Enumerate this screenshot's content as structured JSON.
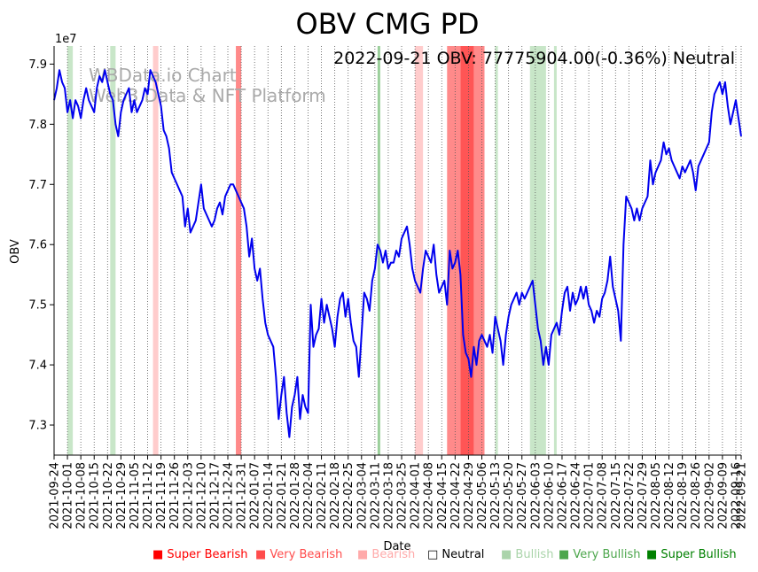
{
  "chart_data": {
    "type": "line",
    "title": "OBV CMG PD",
    "annotation": "2022-09-21 OBV: 77775904.00(-0.36%) Neutral",
    "watermark_line1": "WBData.io Chart",
    "watermark_line2": "Web3 Data & NFT Platform",
    "xlabel": "Date",
    "ylabel": "OBV",
    "y_scale_label": "1e7",
    "y_ticks": [
      "7.3",
      "7.4",
      "7.5",
      "7.6",
      "7.7",
      "7.8",
      "7.9"
    ],
    "y_tick_values": [
      7.3,
      7.4,
      7.5,
      7.6,
      7.7,
      7.8,
      7.9
    ],
    "ylim": [
      7.25,
      7.93
    ],
    "x_start": "2021-09-24",
    "x_end": "2022-09-21",
    "x_ticks": [
      "2021-09-24",
      "2021-10-01",
      "2021-10-08",
      "2021-10-15",
      "2021-10-22",
      "2021-10-29",
      "2021-11-05",
      "2021-11-12",
      "2021-11-19",
      "2021-11-26",
      "2021-12-03",
      "2021-12-10",
      "2021-12-17",
      "2021-12-24",
      "2021-12-31",
      "2022-01-07",
      "2022-01-14",
      "2022-01-21",
      "2022-01-28",
      "2022-02-04",
      "2022-02-11",
      "2022-02-18",
      "2022-02-25",
      "2022-03-04",
      "2022-03-11",
      "2022-03-18",
      "2022-03-25",
      "2022-04-01",
      "2022-04-08",
      "2022-04-15",
      "2022-04-22",
      "2022-04-29",
      "2022-05-06",
      "2022-05-13",
      "2022-05-20",
      "2022-05-27",
      "2022-06-03",
      "2022-06-10",
      "2022-06-17",
      "2022-06-24",
      "2022-07-01",
      "2022-07-08",
      "2022-07-15",
      "2022-07-22",
      "2022-07-29",
      "2022-08-05",
      "2022-08-12",
      "2022-08-19",
      "2022-08-26",
      "2022-09-02",
      "2022-09-09",
      "2022-09-16",
      "2022-09-21"
    ],
    "series": [
      {
        "name": "OBV",
        "color": "#0000ee",
        "points": [
          [
            0,
            7.84
          ],
          [
            1,
            7.86
          ],
          [
            2,
            7.89
          ],
          [
            3,
            7.87
          ],
          [
            4,
            7.86
          ],
          [
            5,
            7.82
          ],
          [
            6,
            7.84
          ],
          [
            7,
            7.81
          ],
          [
            8,
            7.84
          ],
          [
            9,
            7.83
          ],
          [
            10,
            7.81
          ],
          [
            11,
            7.84
          ],
          [
            12,
            7.86
          ],
          [
            13,
            7.84
          ],
          [
            14,
            7.83
          ],
          [
            15,
            7.82
          ],
          [
            16,
            7.86
          ],
          [
            17,
            7.88
          ],
          [
            18,
            7.87
          ],
          [
            19,
            7.89
          ],
          [
            20,
            7.87
          ],
          [
            21,
            7.85
          ],
          [
            22,
            7.84
          ],
          [
            23,
            7.8
          ],
          [
            24,
            7.78
          ],
          [
            25,
            7.82
          ],
          [
            26,
            7.84
          ],
          [
            27,
            7.85
          ],
          [
            28,
            7.86
          ],
          [
            29,
            7.82
          ],
          [
            30,
            7.84
          ],
          [
            31,
            7.82
          ],
          [
            32,
            7.83
          ],
          [
            33,
            7.84
          ],
          [
            34,
            7.86
          ],
          [
            35,
            7.85
          ],
          [
            36,
            7.89
          ],
          [
            37,
            7.88
          ],
          [
            38,
            7.87
          ],
          [
            39,
            7.85
          ],
          [
            40,
            7.83
          ],
          [
            41,
            7.79
          ],
          [
            42,
            7.78
          ],
          [
            43,
            7.76
          ],
          [
            44,
            7.72
          ],
          [
            45,
            7.71
          ],
          [
            46,
            7.7
          ],
          [
            47,
            7.69
          ],
          [
            48,
            7.68
          ],
          [
            49,
            7.63
          ],
          [
            50,
            7.66
          ],
          [
            51,
            7.62
          ],
          [
            52,
            7.63
          ],
          [
            53,
            7.64
          ],
          [
            54,
            7.67
          ],
          [
            55,
            7.7
          ],
          [
            56,
            7.66
          ],
          [
            57,
            7.65
          ],
          [
            58,
            7.64
          ],
          [
            59,
            7.63
          ],
          [
            60,
            7.64
          ],
          [
            61,
            7.66
          ],
          [
            62,
            7.67
          ],
          [
            63,
            7.65
          ],
          [
            64,
            7.68
          ],
          [
            65,
            7.69
          ],
          [
            66,
            7.7
          ],
          [
            67,
            7.7
          ],
          [
            68,
            7.69
          ],
          [
            69,
            7.68
          ],
          [
            70,
            7.67
          ],
          [
            71,
            7.66
          ],
          [
            72,
            7.63
          ],
          [
            73,
            7.58
          ],
          [
            74,
            7.61
          ],
          [
            75,
            7.56
          ],
          [
            76,
            7.54
          ],
          [
            77,
            7.56
          ],
          [
            78,
            7.51
          ],
          [
            79,
            7.47
          ],
          [
            80,
            7.45
          ],
          [
            81,
            7.44
          ],
          [
            82,
            7.43
          ],
          [
            83,
            7.38
          ],
          [
            84,
            7.31
          ],
          [
            85,
            7.35
          ],
          [
            86,
            7.38
          ],
          [
            87,
            7.32
          ],
          [
            88,
            7.28
          ],
          [
            89,
            7.33
          ],
          [
            90,
            7.35
          ],
          [
            91,
            7.38
          ],
          [
            92,
            7.31
          ],
          [
            93,
            7.35
          ],
          [
            94,
            7.33
          ],
          [
            95,
            7.32
          ],
          [
            96,
            7.5
          ],
          [
            97,
            7.43
          ],
          [
            98,
            7.45
          ],
          [
            99,
            7.46
          ],
          [
            100,
            7.51
          ],
          [
            101,
            7.47
          ],
          [
            102,
            7.5
          ],
          [
            103,
            7.48
          ],
          [
            104,
            7.46
          ],
          [
            105,
            7.43
          ],
          [
            106,
            7.48
          ],
          [
            107,
            7.51
          ],
          [
            108,
            7.52
          ],
          [
            109,
            7.48
          ],
          [
            110,
            7.51
          ],
          [
            111,
            7.47
          ],
          [
            112,
            7.44
          ],
          [
            113,
            7.43
          ],
          [
            114,
            7.38
          ],
          [
            115,
            7.45
          ],
          [
            116,
            7.52
          ],
          [
            117,
            7.51
          ],
          [
            118,
            7.49
          ],
          [
            119,
            7.54
          ],
          [
            120,
            7.56
          ],
          [
            121,
            7.6
          ],
          [
            122,
            7.59
          ],
          [
            123,
            7.57
          ],
          [
            124,
            7.59
          ],
          [
            125,
            7.56
          ],
          [
            126,
            7.57
          ],
          [
            127,
            7.57
          ],
          [
            128,
            7.59
          ],
          [
            129,
            7.58
          ],
          [
            130,
            7.61
          ],
          [
            131,
            7.62
          ],
          [
            132,
            7.63
          ],
          [
            133,
            7.6
          ],
          [
            134,
            7.56
          ],
          [
            135,
            7.54
          ],
          [
            136,
            7.53
          ],
          [
            137,
            7.52
          ],
          [
            138,
            7.56
          ],
          [
            139,
            7.59
          ],
          [
            140,
            7.58
          ],
          [
            141,
            7.57
          ],
          [
            142,
            7.6
          ],
          [
            143,
            7.55
          ],
          [
            144,
            7.52
          ],
          [
            145,
            7.53
          ],
          [
            146,
            7.54
          ],
          [
            147,
            7.5
          ],
          [
            148,
            7.59
          ],
          [
            149,
            7.56
          ],
          [
            150,
            7.57
          ],
          [
            151,
            7.59
          ],
          [
            152,
            7.55
          ],
          [
            153,
            7.45
          ],
          [
            154,
            7.42
          ],
          [
            155,
            7.41
          ],
          [
            156,
            7.38
          ],
          [
            157,
            7.43
          ],
          [
            158,
            7.4
          ],
          [
            159,
            7.44
          ],
          [
            160,
            7.45
          ],
          [
            161,
            7.44
          ],
          [
            162,
            7.43
          ],
          [
            163,
            7.45
          ],
          [
            164,
            7.42
          ],
          [
            165,
            7.48
          ],
          [
            166,
            7.46
          ],
          [
            167,
            7.44
          ],
          [
            168,
            7.4
          ],
          [
            169,
            7.45
          ],
          [
            170,
            7.48
          ],
          [
            171,
            7.5
          ],
          [
            172,
            7.51
          ],
          [
            173,
            7.52
          ],
          [
            174,
            7.5
          ],
          [
            175,
            7.52
          ],
          [
            176,
            7.51
          ],
          [
            177,
            7.52
          ],
          [
            178,
            7.53
          ],
          [
            179,
            7.54
          ],
          [
            180,
            7.5
          ],
          [
            181,
            7.46
          ],
          [
            182,
            7.44
          ],
          [
            183,
            7.4
          ],
          [
            184,
            7.43
          ],
          [
            185,
            7.4
          ],
          [
            186,
            7.45
          ],
          [
            187,
            7.46
          ],
          [
            188,
            7.47
          ],
          [
            189,
            7.45
          ],
          [
            190,
            7.49
          ],
          [
            191,
            7.52
          ],
          [
            192,
            7.53
          ],
          [
            193,
            7.49
          ],
          [
            194,
            7.52
          ],
          [
            195,
            7.5
          ],
          [
            196,
            7.51
          ],
          [
            197,
            7.53
          ],
          [
            198,
            7.51
          ],
          [
            199,
            7.53
          ],
          [
            200,
            7.5
          ],
          [
            201,
            7.49
          ],
          [
            202,
            7.47
          ],
          [
            203,
            7.49
          ],
          [
            204,
            7.48
          ],
          [
            205,
            7.51
          ],
          [
            206,
            7.52
          ],
          [
            207,
            7.54
          ],
          [
            208,
            7.58
          ],
          [
            209,
            7.53
          ],
          [
            210,
            7.51
          ],
          [
            211,
            7.49
          ],
          [
            212,
            7.44
          ],
          [
            213,
            7.6
          ],
          [
            214,
            7.68
          ],
          [
            215,
            7.67
          ],
          [
            216,
            7.66
          ],
          [
            217,
            7.64
          ],
          [
            218,
            7.66
          ],
          [
            219,
            7.64
          ],
          [
            220,
            7.66
          ],
          [
            221,
            7.67
          ],
          [
            222,
            7.68
          ],
          [
            223,
            7.74
          ],
          [
            224,
            7.7
          ],
          [
            225,
            7.72
          ],
          [
            226,
            7.73
          ],
          [
            227,
            7.74
          ],
          [
            228,
            7.77
          ],
          [
            229,
            7.75
          ],
          [
            230,
            7.76
          ],
          [
            231,
            7.74
          ],
          [
            232,
            7.73
          ],
          [
            233,
            7.72
          ],
          [
            234,
            7.71
          ],
          [
            235,
            7.73
          ],
          [
            236,
            7.72
          ],
          [
            237,
            7.73
          ],
          [
            238,
            7.74
          ],
          [
            239,
            7.72
          ],
          [
            240,
            7.69
          ],
          [
            241,
            7.73
          ],
          [
            242,
            7.74
          ],
          [
            243,
            7.75
          ],
          [
            244,
            7.76
          ],
          [
            245,
            7.77
          ],
          [
            246,
            7.82
          ],
          [
            247,
            7.85
          ],
          [
            248,
            7.86
          ],
          [
            249,
            7.87
          ],
          [
            250,
            7.85
          ],
          [
            251,
            7.87
          ],
          [
            252,
            7.83
          ],
          [
            253,
            7.8
          ],
          [
            254,
            7.82
          ],
          [
            255,
            7.84
          ],
          [
            256,
            7.81
          ],
          [
            257,
            7.78
          ]
        ]
      }
    ],
    "spans": [
      {
        "start": 5,
        "end": 7,
        "sentiment": "Bullish"
      },
      {
        "start": 21,
        "end": 23,
        "sentiment": "Bullish"
      },
      {
        "start": 37,
        "end": 39,
        "sentiment": "Bearish"
      },
      {
        "start": 68,
        "end": 70,
        "sentiment": "Very Bearish"
      },
      {
        "start": 121,
        "end": 122,
        "sentiment": "Very Bullish"
      },
      {
        "start": 135,
        "end": 138,
        "sentiment": "Bearish"
      },
      {
        "start": 147,
        "end": 152,
        "sentiment": "Very Bearish"
      },
      {
        "start": 152,
        "end": 157,
        "sentiment": "Super Bearish"
      },
      {
        "start": 157,
        "end": 161,
        "sentiment": "Very Bearish"
      },
      {
        "start": 165,
        "end": 166,
        "sentiment": "Bullish"
      },
      {
        "start": 178,
        "end": 184,
        "sentiment": "Bullish"
      },
      {
        "start": 187,
        "end": 188,
        "sentiment": "Bullish"
      }
    ],
    "legend": [
      {
        "label": "Super Bearish",
        "marker": "■",
        "color": "#ff0000"
      },
      {
        "label": "Very Bearish",
        "marker": "■",
        "color": "#ff4c4c"
      },
      {
        "label": "Bearish",
        "marker": "■",
        "color": "#ffaaaa"
      },
      {
        "label": "Neutral",
        "marker": "□",
        "color": "#000000"
      },
      {
        "label": "Bullish",
        "marker": "■",
        "color": "#aad4aa"
      },
      {
        "label": "Very Bullish",
        "marker": "■",
        "color": "#4ca64c"
      },
      {
        "label": "Super Bullish",
        "marker": "■",
        "color": "#008000"
      }
    ],
    "span_colors": {
      "Super Bearish": "#ff5555",
      "Very Bearish": "#ff8a8a",
      "Bearish": "#ffcccc",
      "Bullish": "#c8e6c8",
      "Very Bullish": "#9bcf9b",
      "Super Bullish": "#4ca64c"
    }
  }
}
